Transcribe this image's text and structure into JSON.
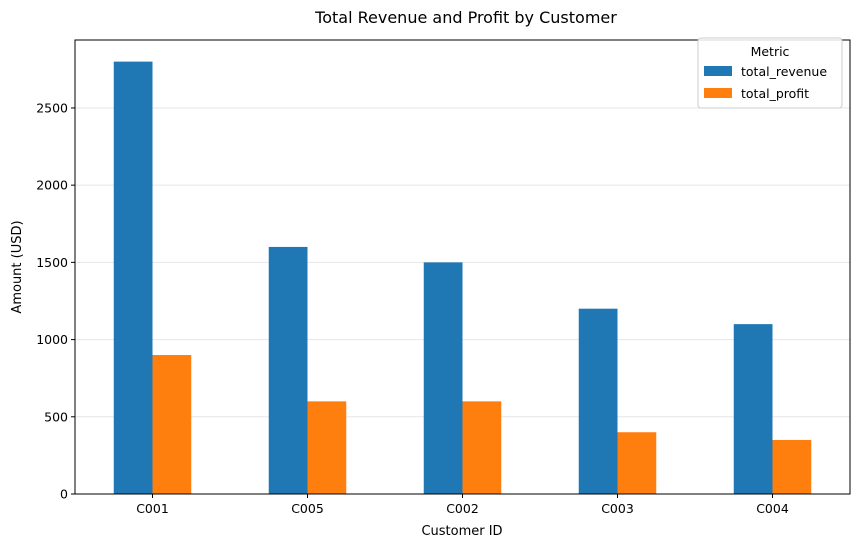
{
  "chart_data": {
    "type": "bar",
    "title": "Total Revenue and Profit by Customer",
    "xlabel": "Customer ID",
    "ylabel": "Amount (USD)",
    "categories": [
      "C001",
      "C005",
      "C002",
      "C003",
      "C004"
    ],
    "series": [
      {
        "name": "total_revenue",
        "values": [
          2800,
          1600,
          1500,
          1200,
          1100
        ],
        "color": "#1f77b4"
      },
      {
        "name": "total_profit",
        "values": [
          900,
          600,
          600,
          400,
          350
        ],
        "color": "#ff7f0e"
      }
    ],
    "ylim": [
      0,
      2940
    ],
    "yticks": [
      0,
      500,
      1000,
      1500,
      2000,
      2500
    ],
    "ytick_labels": [
      "0",
      "500",
      "1000",
      "1500",
      "2000",
      "2500"
    ],
    "grid": "horizontal",
    "legend": {
      "title": "Metric",
      "position": "top-right"
    }
  }
}
